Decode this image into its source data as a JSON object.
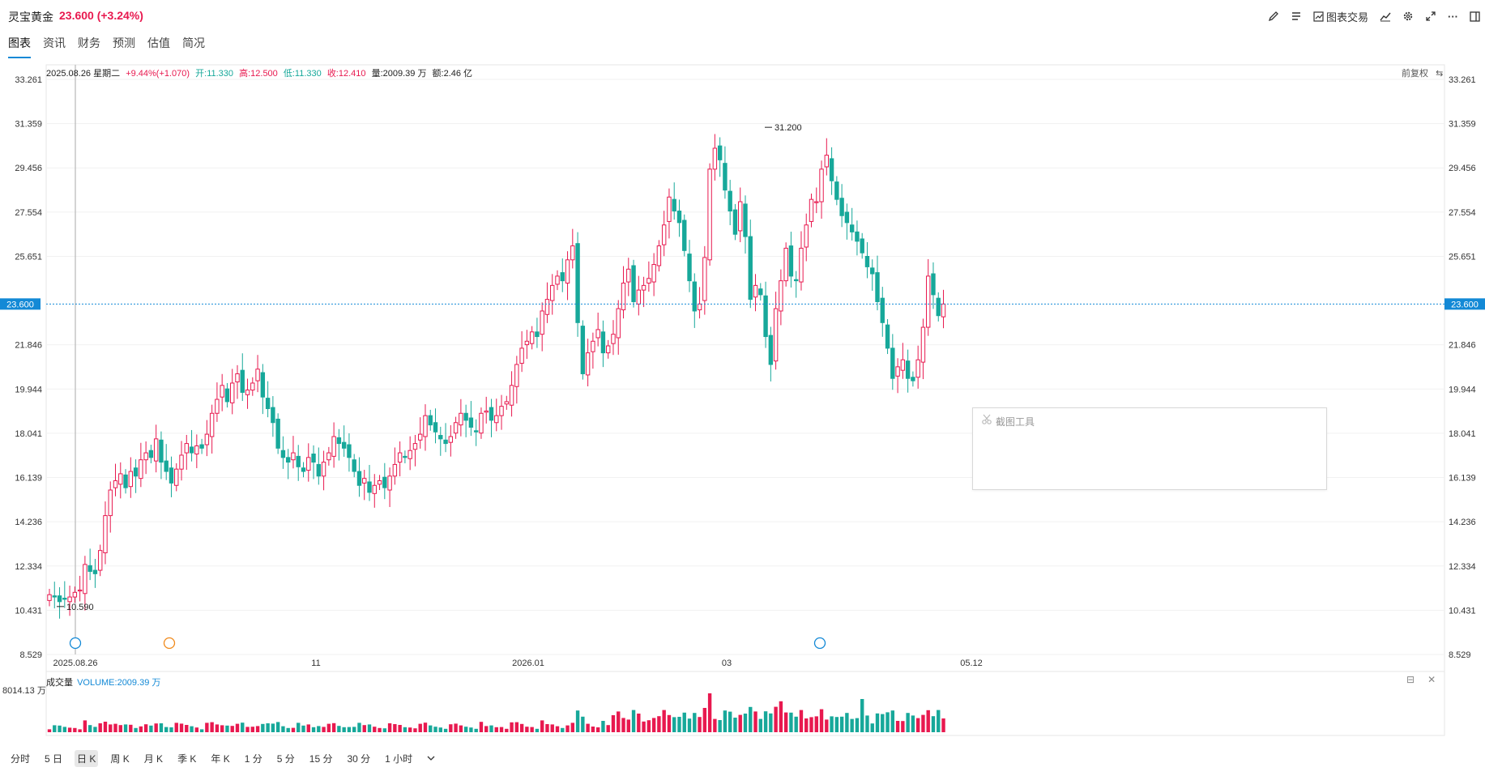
{
  "header": {
    "stock_name": "灵宝黄金",
    "price_change": "23.600 (+3.24%)",
    "tools": [
      {
        "icon": "pen-icon",
        "label": ""
      },
      {
        "icon": "list-icon",
        "label": ""
      },
      {
        "icon": "chart-trade-icon",
        "label": "图表交易"
      },
      {
        "icon": "line-chart-icon",
        "label": ""
      },
      {
        "icon": "gear-icon",
        "label": ""
      },
      {
        "icon": "expand-icon",
        "label": ""
      },
      {
        "icon": "more-icon",
        "label": "···"
      },
      {
        "icon": "layout-icon",
        "label": ""
      }
    ]
  },
  "tabs": [
    "图表",
    "资讯",
    "财务",
    "预测",
    "估值",
    "简况"
  ],
  "info_line": {
    "date": "2025.08.26 星期二",
    "change": "+9.44%(+1.070)",
    "open": "开:11.330",
    "high": "高:12.500",
    "low": "低:11.330",
    "close": "收:12.410",
    "volume": "量:2009.39 万",
    "amount": "额:2.46 亿"
  },
  "fuquan_label": "前复权",
  "volume_panel": {
    "label": "成交量",
    "value": "VOLUME:2009.39 万",
    "axis_max": "8014.13 万"
  },
  "popup": {
    "title": "截图工具"
  },
  "periods": [
    "分时",
    "5 日",
    "日 K",
    "周 K",
    "月 K",
    "季 K",
    "年 K",
    "1 分",
    "5 分",
    "15 分",
    "30 分",
    "1 小时"
  ],
  "active_period": "日 K",
  "colors": {
    "up": "#e8194f",
    "down": "#17a89a",
    "accent": "#1389d6"
  },
  "chart_data": {
    "type": "candlestick",
    "y_ticks": [
      "33.261",
      "31.359",
      "29.456",
      "27.554",
      "25.651",
      "21.846",
      "19.944",
      "18.041",
      "16.139",
      "14.236",
      "12.334",
      "10.431",
      "8.529"
    ],
    "ylim": [
      8.529,
      33.261
    ],
    "x_ticks": [
      "2025.08.26",
      "11",
      "2026.01",
      "03",
      "05.12"
    ],
    "current_price": "23.600",
    "annotations": [
      "31.200",
      "10.590"
    ],
    "close": [
      11.1,
      11.0,
      10.8,
      10.9,
      11.0,
      11.2,
      11.3,
      12.4,
      12.1,
      12.0,
      13.0,
      14.5,
      15.6,
      16.0,
      16.3,
      15.7,
      16.4,
      16.2,
      16.9,
      17.2,
      17.0,
      17.8,
      16.8,
      16.4,
      15.9,
      16.5,
      17.1,
      17.6,
      17.2,
      17.5,
      17.4,
      18.0,
      18.9,
      19.5,
      20.1,
      19.4,
      20.2,
      20.6,
      19.8,
      19.9,
      20.2,
      20.8,
      19.6,
      19.1,
      18.5,
      17.4,
      17.0,
      16.8,
      17.2,
      16.6,
      16.4,
      17.0,
      16.8,
      16.2,
      16.8,
      17.2,
      17.9,
      17.6,
      17.4,
      17.0,
      16.4,
      15.8,
      16.1,
      15.5,
      15.8,
      16.0,
      15.7,
      16.2,
      16.7,
      17.2,
      17.0,
      17.3,
      17.6,
      18.0,
      18.8,
      18.4,
      18.1,
      17.8,
      17.6,
      17.9,
      18.5,
      18.9,
      18.6,
      18.3,
      18.1,
      18.9,
      19.0,
      18.6,
      18.8,
      19.2,
      19.4,
      20.1,
      21.0,
      21.7,
      22.0,
      22.4,
      22.2,
      23.3,
      23.8,
      24.4,
      24.8,
      24.6,
      25.5,
      26.1,
      22.8,
      20.6,
      21.5,
      22.0,
      22.5,
      21.5,
      21.8,
      22.3,
      23.4,
      24.5,
      25.1,
      23.7,
      24.2,
      24.4,
      24.7,
      25.3,
      26.1,
      27.0,
      28.2,
      27.6,
      27.1,
      25.9,
      24.6,
      23.3,
      23.6,
      25.6,
      29.4,
      30.3,
      29.8,
      28.5,
      27.6,
      26.6,
      28.0,
      26.5,
      23.8,
      24.4,
      24.0,
      22.2,
      21.0,
      23.4,
      24.6,
      26.0,
      24.8,
      24.6,
      26.0,
      27.0,
      28.1,
      28.0,
      29.4,
      30.0,
      28.9,
      28.1,
      27.4,
      27.1,
      26.7,
      26.3,
      25.8,
      25.2,
      24.9,
      23.7,
      22.8,
      21.7,
      20.4,
      20.9,
      21.2,
      20.4,
      20.3,
      21.2,
      22.6,
      24.8,
      24.0,
      23.1,
      23.6
    ]
  }
}
